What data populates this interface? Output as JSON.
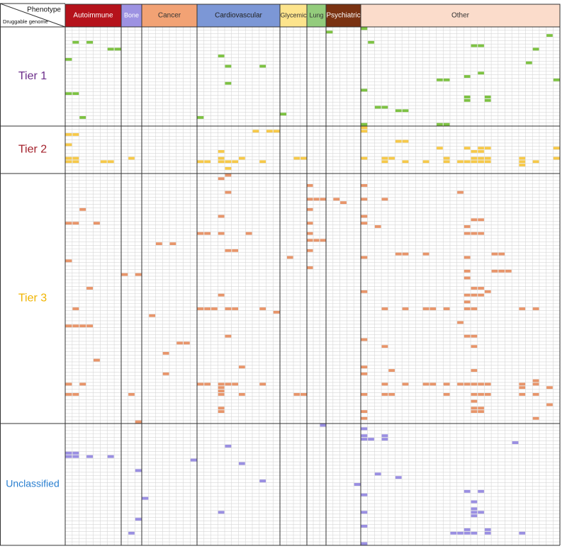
{
  "header": {
    "phenotype_label": "Phenotype",
    "genome_label": "Druggable genome"
  },
  "phenotypes": [
    {
      "name": "Autoimmune",
      "color": "#b5121b",
      "text_color": "#ffffff"
    },
    {
      "name": "Bone",
      "color": "#9d92e2",
      "text_color": "#ffffff"
    },
    {
      "name": "Cancer",
      "color": "#f2a274",
      "text_color": "#333333"
    },
    {
      "name": "Cardiovascular",
      "color": "#7c97d6",
      "text_color": "#222222"
    },
    {
      "name": "Glycemic",
      "color": "#fde48c",
      "text_color": "#333333"
    },
    {
      "name": "Lung",
      "color": "#93cc7c",
      "text_color": "#333333"
    },
    {
      "name": "Psychiatric",
      "color": "#7a3212",
      "text_color": "#ffffff"
    },
    {
      "name": "Other",
      "color": "#fbdccb",
      "text_color": "#333333"
    }
  ],
  "tiers": [
    {
      "name": "Tier 1",
      "label_color": "#6b2d8a",
      "cell_color": "#7dc242",
      "cells": [
        [
          1,
          38
        ],
        [
          0,
          43
        ],
        [
          2,
          70
        ],
        [
          4,
          1
        ],
        [
          4,
          3
        ],
        [
          4,
          44
        ],
        [
          6,
          6
        ],
        [
          6,
          7
        ],
        [
          5,
          59
        ],
        [
          5,
          60
        ],
        [
          6,
          68
        ],
        [
          8,
          22
        ],
        [
          9,
          0
        ],
        [
          10,
          67
        ],
        [
          11,
          23
        ],
        [
          11,
          28
        ],
        [
          13,
          60
        ],
        [
          14,
          58
        ],
        [
          15,
          54
        ],
        [
          15,
          55
        ],
        [
          15,
          71
        ],
        [
          16,
          23
        ],
        [
          18,
          43
        ],
        [
          19,
          0
        ],
        [
          19,
          1
        ],
        [
          20,
          58
        ],
        [
          20,
          61
        ],
        [
          21,
          58
        ],
        [
          21,
          61
        ],
        [
          23,
          45
        ],
        [
          23,
          46
        ],
        [
          24,
          48
        ],
        [
          24,
          49
        ],
        [
          25,
          31
        ],
        [
          26,
          2
        ],
        [
          26,
          19
        ],
        [
          28,
          54
        ],
        [
          28,
          55
        ],
        [
          28,
          43
        ]
      ]
    },
    {
      "name": "Tier 2",
      "label_color": "#a31f2a",
      "cell_color": "#f7c948",
      "cells": [
        [
          0,
          43
        ],
        [
          1,
          43
        ],
        [
          1,
          27
        ],
        [
          1,
          29
        ],
        [
          1,
          30
        ],
        [
          2,
          0
        ],
        [
          2,
          1
        ],
        [
          4,
          48
        ],
        [
          4,
          49
        ],
        [
          5,
          0
        ],
        [
          6,
          54
        ],
        [
          6,
          58
        ],
        [
          6,
          60
        ],
        [
          6,
          61
        ],
        [
          6,
          71
        ],
        [
          7,
          22
        ],
        [
          7,
          59
        ],
        [
          7,
          60
        ],
        [
          9,
          0
        ],
        [
          9,
          1
        ],
        [
          9,
          9
        ],
        [
          9,
          22
        ],
        [
          9,
          25
        ],
        [
          9,
          33
        ],
        [
          9,
          34
        ],
        [
          9,
          43
        ],
        [
          9,
          46
        ],
        [
          9,
          47
        ],
        [
          9,
          55
        ],
        [
          9,
          59
        ],
        [
          9,
          60
        ],
        [
          9,
          61
        ],
        [
          9,
          66
        ],
        [
          9,
          71
        ],
        [
          10,
          0
        ],
        [
          10,
          1
        ],
        [
          10,
          5
        ],
        [
          10,
          6
        ],
        [
          10,
          19
        ],
        [
          10,
          20
        ],
        [
          10,
          22
        ],
        [
          10,
          23
        ],
        [
          10,
          24
        ],
        [
          10,
          28
        ],
        [
          10,
          46
        ],
        [
          10,
          49
        ],
        [
          10,
          52
        ],
        [
          10,
          55
        ],
        [
          10,
          57
        ],
        [
          10,
          58
        ],
        [
          10,
          59
        ],
        [
          10,
          60
        ],
        [
          10,
          61
        ],
        [
          10,
          66
        ],
        [
          10,
          68
        ],
        [
          11,
          66
        ],
        [
          12,
          23
        ]
      ]
    },
    {
      "name": "Tier 3",
      "label_color": "#f0b400",
      "cell_color": "#e8956a",
      "cells": [
        [
          0,
          23
        ],
        [
          1,
          22
        ],
        [
          3,
          35
        ],
        [
          3,
          43
        ],
        [
          5,
          23
        ],
        [
          5,
          57
        ],
        [
          7,
          35
        ],
        [
          7,
          36
        ],
        [
          7,
          37
        ],
        [
          7,
          39
        ],
        [
          7,
          43
        ],
        [
          7,
          46
        ],
        [
          8,
          40
        ],
        [
          10,
          2
        ],
        [
          10,
          35
        ],
        [
          12,
          43
        ],
        [
          12,
          22
        ],
        [
          13,
          59
        ],
        [
          13,
          60
        ],
        [
          14,
          0
        ],
        [
          14,
          1
        ],
        [
          14,
          4
        ],
        [
          14,
          35
        ],
        [
          14,
          43
        ],
        [
          15,
          45
        ],
        [
          15,
          58
        ],
        [
          17,
          19
        ],
        [
          17,
          20
        ],
        [
          17,
          22
        ],
        [
          17,
          26
        ],
        [
          17,
          35
        ],
        [
          17,
          58
        ],
        [
          17,
          59
        ],
        [
          17,
          60
        ],
        [
          19,
          35
        ],
        [
          19,
          36
        ],
        [
          19,
          37
        ],
        [
          20,
          13
        ],
        [
          20,
          15
        ],
        [
          22,
          23
        ],
        [
          22,
          24
        ],
        [
          22,
          35
        ],
        [
          23,
          48
        ],
        [
          23,
          49
        ],
        [
          23,
          52
        ],
        [
          23,
          62
        ],
        [
          23,
          63
        ],
        [
          24,
          32
        ],
        [
          24,
          43
        ],
        [
          24,
          58
        ],
        [
          25,
          0
        ],
        [
          27,
          35
        ],
        [
          28,
          62
        ],
        [
          28,
          63
        ],
        [
          28,
          64
        ],
        [
          28,
          58
        ],
        [
          29,
          8
        ],
        [
          29,
          10
        ],
        [
          30,
          58
        ],
        [
          33,
          3
        ],
        [
          33,
          59
        ],
        [
          33,
          60
        ],
        [
          34,
          43
        ],
        [
          34,
          61
        ],
        [
          35,
          22
        ],
        [
          35,
          58
        ],
        [
          35,
          59
        ],
        [
          35,
          60
        ],
        [
          37,
          58
        ],
        [
          39,
          1
        ],
        [
          39,
          19
        ],
        [
          39,
          20
        ],
        [
          39,
          21
        ],
        [
          39,
          23
        ],
        [
          39,
          24
        ],
        [
          39,
          28
        ],
        [
          39,
          46
        ],
        [
          39,
          49
        ],
        [
          39,
          52
        ],
        [
          39,
          53
        ],
        [
          39,
          55
        ],
        [
          39,
          58
        ],
        [
          39,
          59
        ],
        [
          39,
          66
        ],
        [
          39,
          68
        ],
        [
          40,
          30
        ],
        [
          41,
          12
        ],
        [
          43,
          57
        ],
        [
          44,
          0
        ],
        [
          44,
          1
        ],
        [
          44,
          2
        ],
        [
          44,
          3
        ],
        [
          47,
          23
        ],
        [
          47,
          58
        ],
        [
          47,
          59
        ],
        [
          48,
          43
        ],
        [
          49,
          16
        ],
        [
          49,
          17
        ],
        [
          50,
          46
        ],
        [
          50,
          59
        ],
        [
          52,
          14
        ],
        [
          54,
          4
        ],
        [
          56,
          25
        ],
        [
          56,
          43
        ],
        [
          57,
          47
        ],
        [
          57,
          59
        ],
        [
          58,
          14
        ],
        [
          58,
          43
        ],
        [
          60,
          68
        ],
        [
          61,
          0
        ],
        [
          61,
          2
        ],
        [
          61,
          19
        ],
        [
          61,
          20
        ],
        [
          61,
          22
        ],
        [
          61,
          23
        ],
        [
          61,
          24
        ],
        [
          61,
          28
        ],
        [
          61,
          46
        ],
        [
          61,
          49
        ],
        [
          61,
          52
        ],
        [
          61,
          53
        ],
        [
          61,
          55
        ],
        [
          61,
          57
        ],
        [
          61,
          58
        ],
        [
          61,
          59
        ],
        [
          61,
          60
        ],
        [
          61,
          61
        ],
        [
          61,
          66
        ],
        [
          61,
          68
        ],
        [
          62,
          22
        ],
        [
          62,
          66
        ],
        [
          62,
          70
        ],
        [
          63,
          22
        ],
        [
          64,
          0
        ],
        [
          64,
          1
        ],
        [
          64,
          9
        ],
        [
          64,
          22
        ],
        [
          64,
          25
        ],
        [
          64,
          33
        ],
        [
          64,
          34
        ],
        [
          64,
          43
        ],
        [
          64,
          46
        ],
        [
          64,
          47
        ],
        [
          64,
          55
        ],
        [
          64,
          59
        ],
        [
          64,
          60
        ],
        [
          64,
          61
        ],
        [
          64,
          66
        ],
        [
          64,
          68
        ],
        [
          66,
          59
        ],
        [
          67,
          70
        ],
        [
          68,
          22
        ],
        [
          68,
          59
        ],
        [
          68,
          60
        ],
        [
          69,
          22
        ],
        [
          69,
          43
        ],
        [
          69,
          59
        ],
        [
          69,
          60
        ],
        [
          71,
          43
        ],
        [
          71,
          68
        ],
        [
          72,
          10
        ]
      ]
    },
    {
      "name": "Unclassified",
      "label_color": "#2a7fd0",
      "cell_color": "#9a8fe2",
      "cells": [
        [
          0,
          37
        ],
        [
          1,
          43
        ],
        [
          3,
          43
        ],
        [
          3,
          46
        ],
        [
          4,
          43
        ],
        [
          4,
          44
        ],
        [
          4,
          46
        ],
        [
          5,
          65
        ],
        [
          6,
          23
        ],
        [
          8,
          0
        ],
        [
          8,
          1
        ],
        [
          9,
          0
        ],
        [
          9,
          1
        ],
        [
          9,
          3
        ],
        [
          9,
          6
        ],
        [
          10,
          18
        ],
        [
          11,
          25
        ],
        [
          13,
          10
        ],
        [
          14,
          45
        ],
        [
          15,
          48
        ],
        [
          16,
          28
        ],
        [
          17,
          42
        ],
        [
          19,
          58
        ],
        [
          19,
          60
        ],
        [
          20,
          43
        ],
        [
          21,
          11
        ],
        [
          22,
          59
        ],
        [
          24,
          59
        ],
        [
          25,
          22
        ],
        [
          25,
          43
        ],
        [
          25,
          59
        ],
        [
          25,
          60
        ],
        [
          26,
          59
        ],
        [
          27,
          10
        ],
        [
          29,
          43
        ],
        [
          30,
          58
        ],
        [
          30,
          61
        ],
        [
          31,
          9
        ],
        [
          31,
          56
        ],
        [
          31,
          57
        ],
        [
          31,
          58
        ],
        [
          31,
          59
        ],
        [
          31,
          61
        ],
        [
          31,
          66
        ],
        [
          34,
          43
        ]
      ]
    }
  ]
}
